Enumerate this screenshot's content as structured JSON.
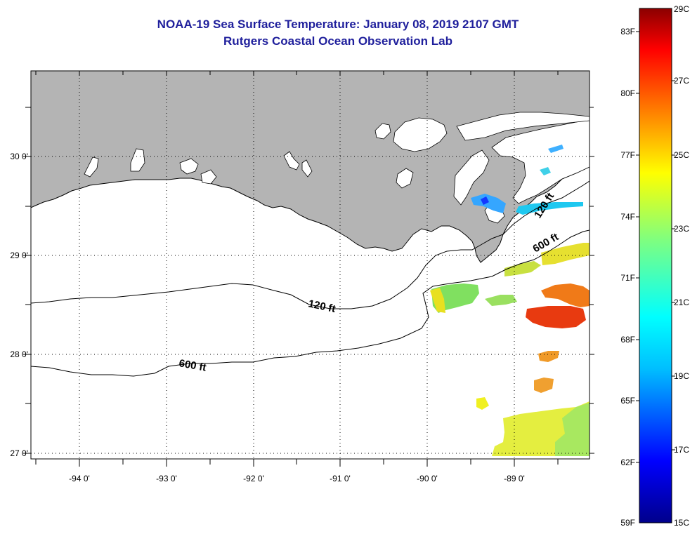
{
  "header": {
    "title": "NOAA-19 Sea Surface Temperature:  January 08, 2019 2107 GMT",
    "subtitle": "Rutgers Coastal Ocean Observation Lab"
  },
  "map": {
    "lat_labels": [
      "30 0'",
      "29 0'",
      "28 0'",
      "27 0'"
    ],
    "lon_labels": [
      "-94 0'",
      "-93 0'",
      "-92 0'",
      "-91 0'",
      "-90 0'",
      "-89 0'"
    ],
    "lon_range": [
      -94.5,
      -88.2
    ],
    "lat_range": [
      26.95,
      30.8
    ],
    "land_color": "#b4b4b4",
    "contours": [
      {
        "label": "120 ft"
      },
      {
        "label": "600 ft"
      },
      {
        "label": "120 ft"
      },
      {
        "label": "600 ft"
      }
    ]
  },
  "colorbar": {
    "fahrenheit_labels": [
      "83F",
      "80F",
      "77F",
      "74F",
      "71F",
      "68F",
      "65F",
      "62F",
      "59F"
    ],
    "celsius_labels": [
      "29C",
      "27C",
      "25C",
      "23C",
      "21C",
      "19C",
      "17C",
      "15C"
    ],
    "celsius_range": [
      15,
      29
    ],
    "colors": [
      "#00008b",
      "#0000ff",
      "#00bfff",
      "#00ffff",
      "#7fff7f",
      "#ffff00",
      "#ff7f00",
      "#ff0000",
      "#8b0000"
    ]
  }
}
